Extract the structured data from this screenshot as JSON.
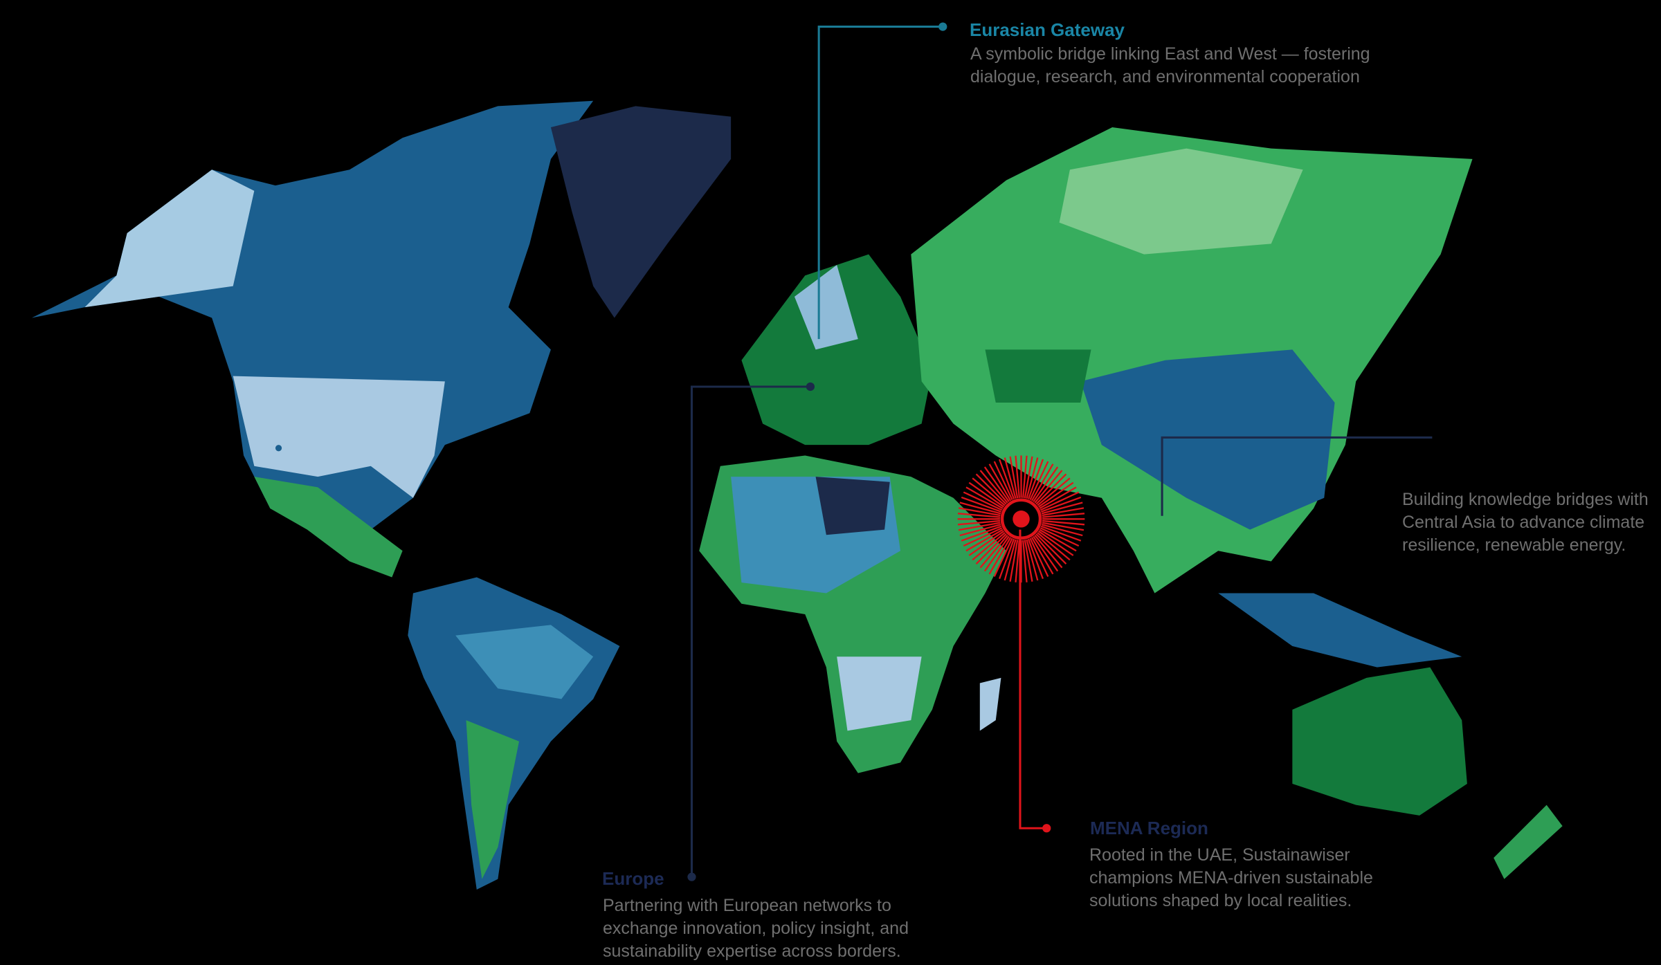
{
  "callouts": {
    "eurasian": {
      "title": "Eurasian Gateway",
      "description": "A symbolic bridge linking East and West — fostering dialogue, research, and environmental cooperation"
    },
    "central_asia": {
      "description": "Building knowledge bridges with Central Asia to advance climate resilience, renewable energy."
    },
    "mena": {
      "title": "MENA Region",
      "description": "Rooted in the UAE, Sustainawiser champions MENA-driven sustainable solutions shaped by local realities."
    },
    "europe": {
      "title": "Europe",
      "description": "Partnering with European networks to exchange innovation, policy insight, and sustainability expertise across borders."
    }
  }
}
